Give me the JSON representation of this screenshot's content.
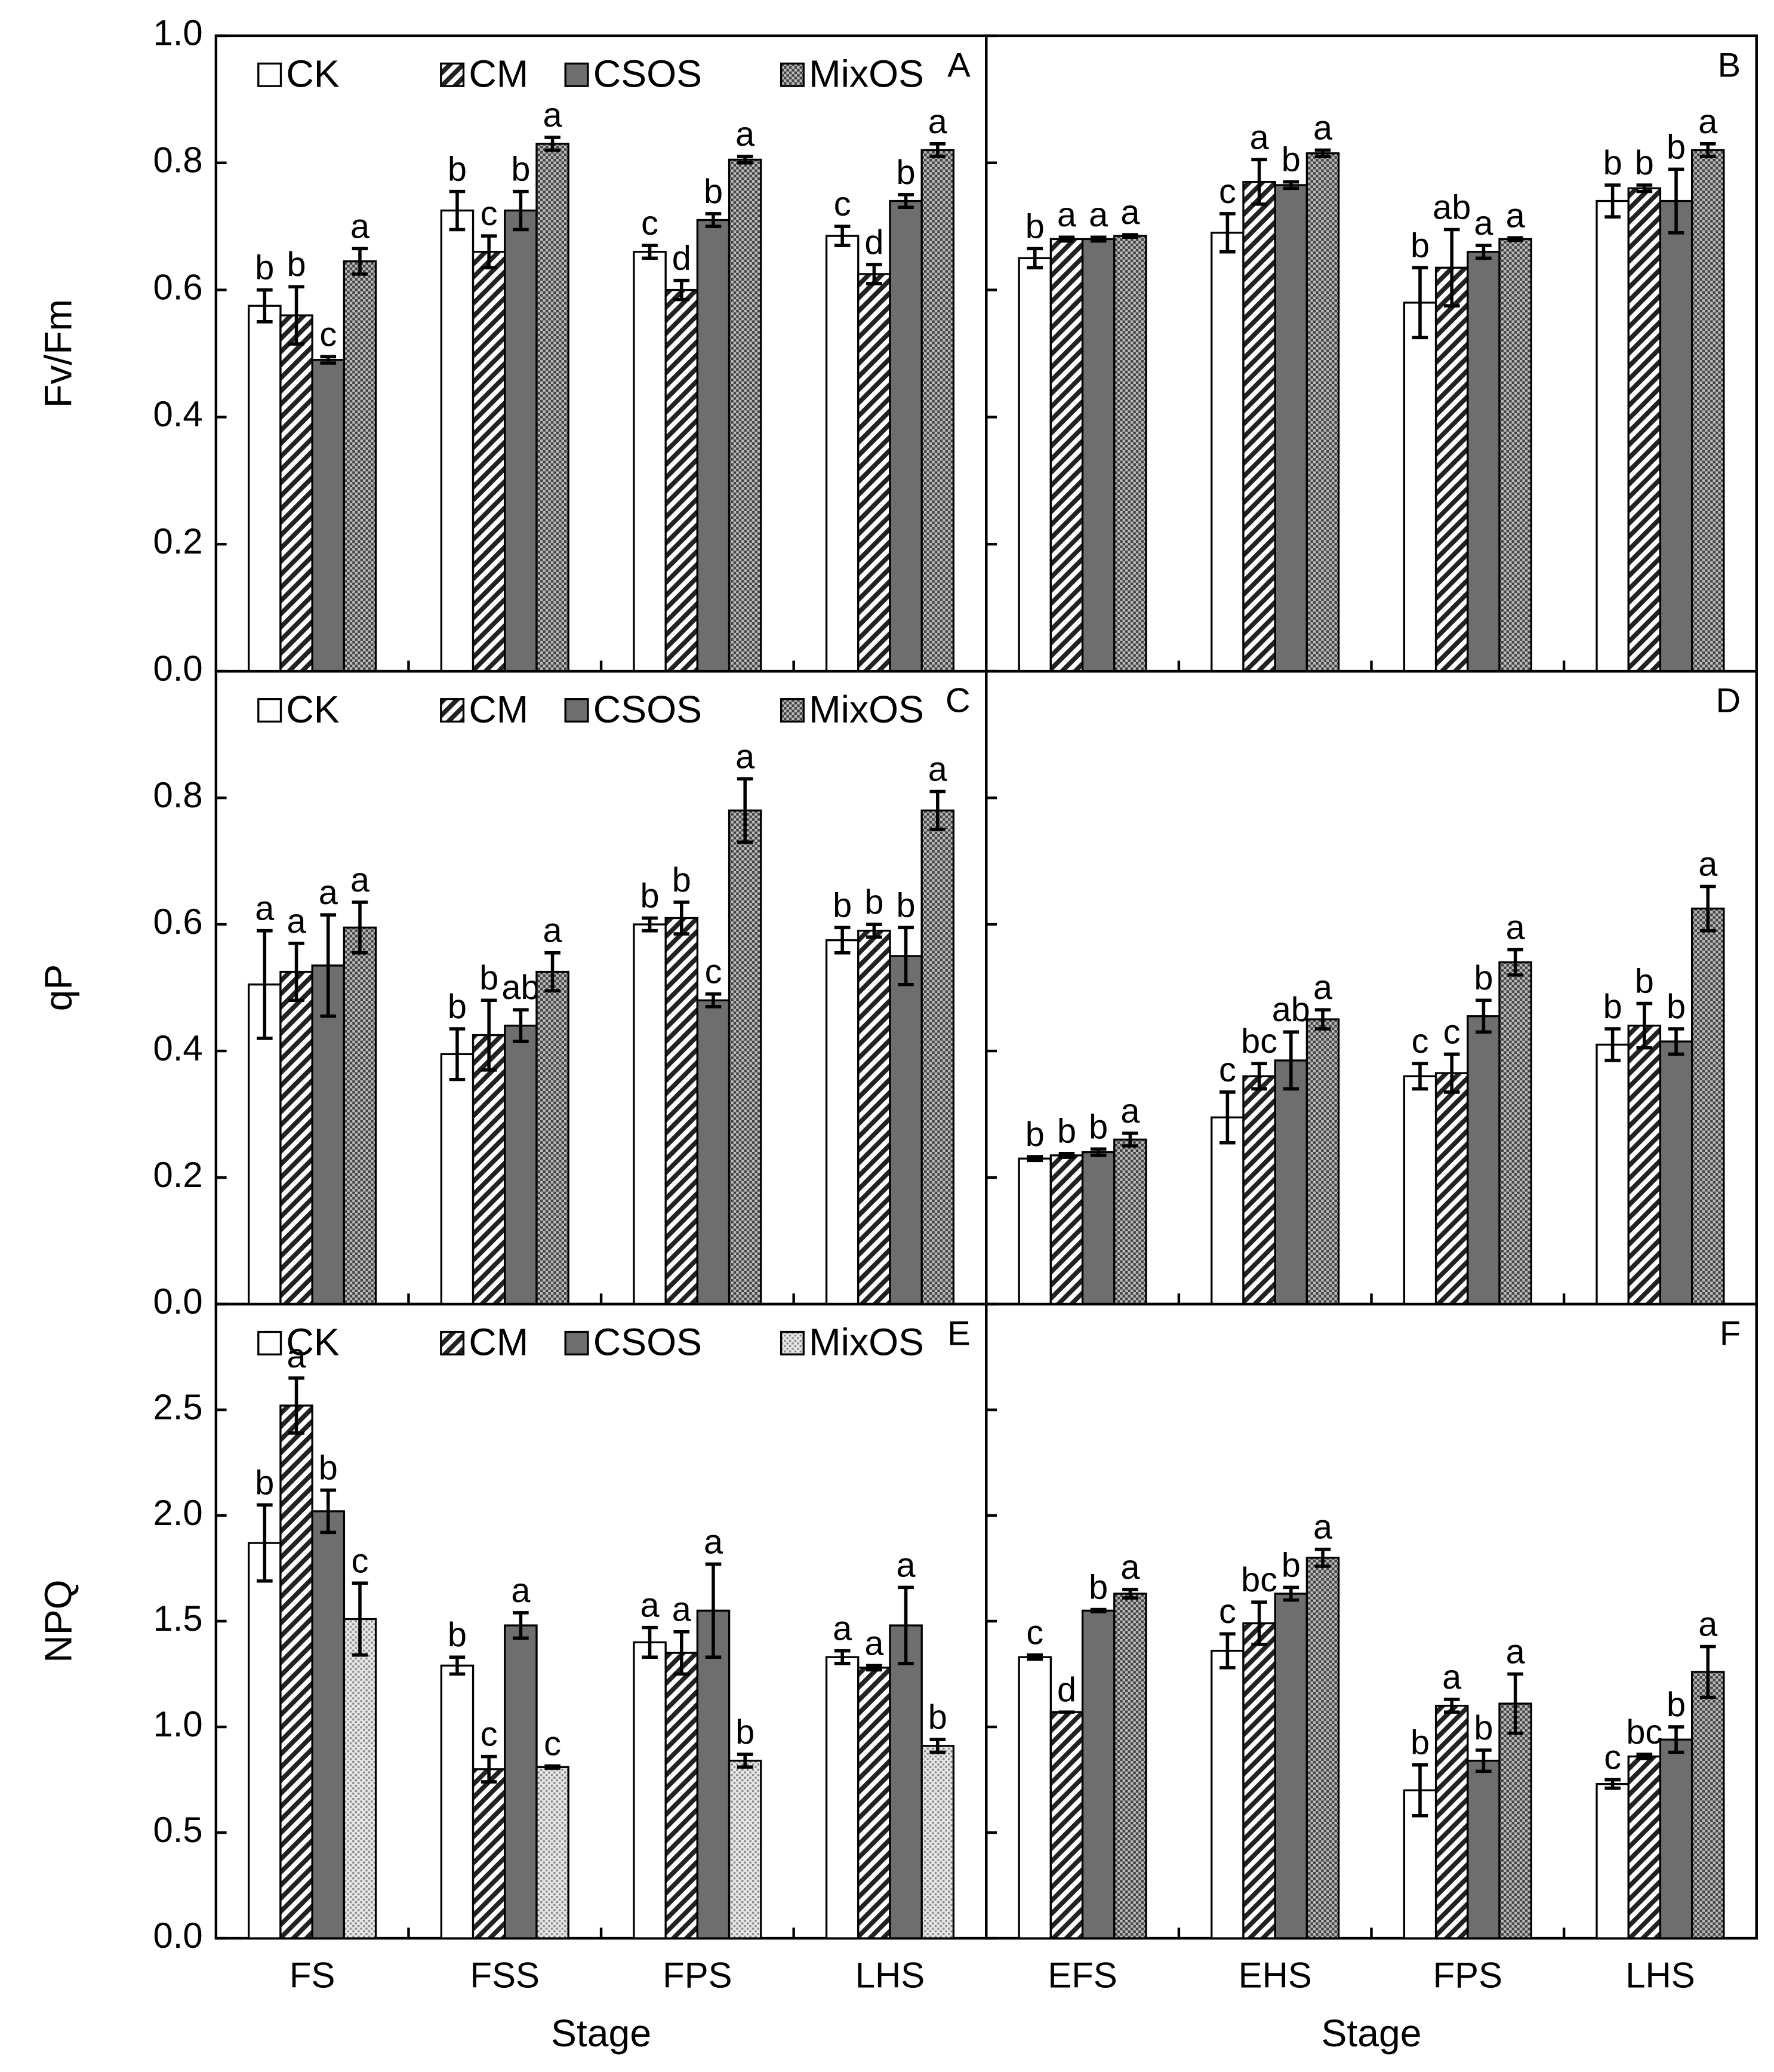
{
  "chart_data": [
    {
      "type": "bar",
      "panel_label": "A",
      "y_label": "Fv/Fm",
      "legend": true,
      "tick_labels": true,
      "ylim": [
        0,
        1.0
      ],
      "yticks": [
        {
          "value": 0,
          "label": "0.0"
        },
        {
          "value": 0.2,
          "label": "0.2"
        },
        {
          "value": 0.4,
          "label": "0.4"
        },
        {
          "value": 0.6,
          "label": "0.6"
        },
        {
          "value": 0.8,
          "label": "0.8"
        },
        {
          "value": 1.0,
          "label": "1.0"
        }
      ],
      "series": [
        {
          "name": "CK",
          "pattern": "white",
          "values": [
            0.575,
            0.725,
            0.66,
            0.685
          ],
          "errors": [
            0.025,
            0.03,
            0.01,
            0.015
          ],
          "letters": [
            "b",
            "b",
            "c",
            "c"
          ]
        },
        {
          "name": "CM",
          "pattern": "hatch",
          "values": [
            0.56,
            0.66,
            0.6,
            0.625
          ],
          "errors": [
            0.045,
            0.025,
            0.015,
            0.015
          ],
          "letters": [
            "b",
            "c",
            "d",
            "d"
          ]
        },
        {
          "name": "CSOS",
          "pattern": "gray",
          "values": [
            0.49,
            0.725,
            0.71,
            0.74
          ],
          "errors": [
            0.005,
            0.03,
            0.01,
            0.01
          ],
          "letters": [
            "c",
            "b",
            "b",
            "b"
          ]
        },
        {
          "name": "MixOS",
          "pattern": "checker",
          "values": [
            0.645,
            0.83,
            0.805,
            0.82
          ],
          "errors": [
            0.02,
            0.01,
            0.005,
            0.01
          ],
          "letters": [
            "a",
            "a",
            "a",
            "a"
          ]
        }
      ]
    },
    {
      "type": "bar",
      "panel_label": "B",
      "tick_labels": false,
      "ylim": [
        0,
        1.0
      ],
      "yticks": [
        0,
        0.2,
        0.4,
        0.6,
        0.8,
        1.0
      ],
      "series": [
        {
          "pattern": "white",
          "values": [
            0.65,
            0.69,
            0.58,
            0.74
          ],
          "errors": [
            0.015,
            0.03,
            0.055,
            0.025
          ],
          "letters": [
            "b",
            "c",
            "b",
            "b"
          ]
        },
        {
          "pattern": "hatch",
          "values": [
            0.68,
            0.77,
            0.635,
            0.76
          ],
          "errors": [
            0.003,
            0.035,
            0.06,
            0.005
          ],
          "letters": [
            "a",
            "a",
            "ab",
            "b"
          ]
        },
        {
          "pattern": "gray",
          "values": [
            0.68,
            0.765,
            0.66,
            0.74
          ],
          "errors": [
            0.003,
            0.005,
            0.01,
            0.05
          ],
          "letters": [
            "a",
            "b",
            "a",
            "b"
          ]
        },
        {
          "pattern": "checker",
          "values": [
            0.685,
            0.815,
            0.68,
            0.82
          ],
          "errors": [
            0.002,
            0.005,
            0.002,
            0.01
          ],
          "letters": [
            "a",
            "a",
            "a",
            "a"
          ]
        }
      ]
    },
    {
      "type": "bar",
      "panel_label": "C",
      "y_label": "qP",
      "legend": true,
      "tick_labels": true,
      "ylim": [
        0,
        1.0
      ],
      "yticks": [
        {
          "value": 0,
          "label": "0.0"
        },
        {
          "value": 0.2,
          "label": "0.2"
        },
        {
          "value": 0.4,
          "label": "0.4"
        },
        {
          "value": 0.6,
          "label": "0.6"
        },
        {
          "value": 0.8,
          "label": "0.8"
        }
      ],
      "series": [
        {
          "name": "CK",
          "pattern": "white",
          "values": [
            0.505,
            0.395,
            0.6,
            0.575
          ],
          "errors": [
            0.085,
            0.04,
            0.01,
            0.02
          ],
          "letters": [
            "a",
            "b",
            "b",
            "b"
          ]
        },
        {
          "name": "CM",
          "pattern": "hatch",
          "values": [
            0.525,
            0.425,
            0.61,
            0.59
          ],
          "errors": [
            0.045,
            0.055,
            0.025,
            0.01
          ],
          "letters": [
            "a",
            "b",
            "b",
            "b"
          ]
        },
        {
          "name": "CSOS",
          "pattern": "gray",
          "values": [
            0.535,
            0.44,
            0.48,
            0.55
          ],
          "errors": [
            0.08,
            0.025,
            0.01,
            0.045
          ],
          "letters": [
            "a",
            "ab",
            "c",
            "b"
          ]
        },
        {
          "name": "MixOS",
          "pattern": "checker",
          "values": [
            0.595,
            0.525,
            0.78,
            0.78
          ],
          "errors": [
            0.04,
            0.03,
            0.05,
            0.03
          ],
          "letters": [
            "a",
            "a",
            "a",
            "a"
          ]
        }
      ]
    },
    {
      "type": "bar",
      "panel_label": "D",
      "tick_labels": false,
      "ylim": [
        0,
        1.0
      ],
      "yticks": [
        0,
        0.2,
        0.4,
        0.6,
        0.8
      ],
      "series": [
        {
          "pattern": "white",
          "values": [
            0.23,
            0.295,
            0.36,
            0.41
          ],
          "errors": [
            0.003,
            0.04,
            0.02,
            0.025
          ],
          "letters": [
            "b",
            "c",
            "c",
            "b"
          ]
        },
        {
          "pattern": "hatch",
          "values": [
            0.235,
            0.36,
            0.365,
            0.44
          ],
          "errors": [
            0.003,
            0.02,
            0.03,
            0.035
          ],
          "letters": [
            "b",
            "bc",
            "c",
            "b"
          ]
        },
        {
          "pattern": "gray",
          "values": [
            0.24,
            0.385,
            0.455,
            0.415
          ],
          "errors": [
            0.005,
            0.045,
            0.025,
            0.02
          ],
          "letters": [
            "b",
            "ab",
            "b",
            "b"
          ]
        },
        {
          "pattern": "checker",
          "values": [
            0.26,
            0.45,
            0.54,
            0.625
          ],
          "errors": [
            0.01,
            0.015,
            0.02,
            0.035
          ],
          "letters": [
            "a",
            "a",
            "a",
            "a"
          ]
        }
      ]
    },
    {
      "type": "bar",
      "panel_label": "E",
      "y_label": "NPQ",
      "x_label": "Stage",
      "legend": true,
      "tick_labels": true,
      "categories": [
        "FS",
        "FSS",
        "FPS",
        "LHS"
      ],
      "ylim": [
        0,
        3.0
      ],
      "yticks": [
        {
          "value": 0,
          "label": "0.0"
        },
        {
          "value": 0.5,
          "label": "0.5"
        },
        {
          "value": 1.0,
          "label": "1.0"
        },
        {
          "value": 1.5,
          "label": "1.5"
        },
        {
          "value": 2.0,
          "label": "2.0"
        },
        {
          "value": 2.5,
          "label": "2.5"
        }
      ],
      "series": [
        {
          "name": "CK",
          "pattern": "white",
          "values": [
            1.87,
            1.29,
            1.4,
            1.33
          ],
          "errors": [
            0.18,
            0.04,
            0.07,
            0.03
          ],
          "letters": [
            "b",
            "b",
            "a",
            "a"
          ]
        },
        {
          "name": "CM",
          "pattern": "hatch",
          "values": [
            2.52,
            0.8,
            1.35,
            1.28
          ],
          "errors": [
            0.13,
            0.06,
            0.1,
            0.01
          ],
          "letters": [
            "a",
            "c",
            "a",
            "a"
          ]
        },
        {
          "name": "CSOS",
          "pattern": "gray",
          "values": [
            2.02,
            1.48,
            1.55,
            1.48
          ],
          "errors": [
            0.1,
            0.06,
            0.22,
            0.18
          ],
          "letters": [
            "b",
            "a",
            "a",
            "a"
          ]
        },
        {
          "name": "MixOS",
          "pattern": "dots",
          "values": [
            1.51,
            0.81,
            0.84,
            0.91
          ],
          "errors": [
            0.17,
            0.005,
            0.03,
            0.03
          ],
          "letters": [
            "c",
            "c",
            "b",
            "b"
          ]
        }
      ]
    },
    {
      "type": "bar",
      "panel_label": "F",
      "x_label": "Stage",
      "tick_labels": false,
      "categories": [
        "EFS",
        "EHS",
        "FPS",
        "LHS"
      ],
      "ylim": [
        0,
        3.0
      ],
      "yticks": [
        0,
        0.5,
        1.0,
        1.5,
        2.0,
        2.5
      ],
      "series": [
        {
          "pattern": "white",
          "values": [
            1.33,
            1.36,
            0.7,
            0.73
          ],
          "errors": [
            0.01,
            0.08,
            0.12,
            0.02
          ],
          "letters": [
            "c",
            "c",
            "b",
            "c"
          ]
        },
        {
          "pattern": "hatch",
          "values": [
            1.07,
            1.49,
            1.1,
            0.86
          ],
          "errors": [
            0,
            0.1,
            0.03,
            0.01
          ],
          "letters": [
            "d",
            "bc",
            "a",
            "bc"
          ]
        },
        {
          "pattern": "gray",
          "values": [
            1.55,
            1.63,
            0.84,
            0.94
          ],
          "errors": [
            0.005,
            0.03,
            0.05,
            0.06
          ],
          "letters": [
            "b",
            "b",
            "b",
            "b"
          ]
        },
        {
          "pattern": "checker",
          "values": [
            1.63,
            1.8,
            1.11,
            1.26
          ],
          "errors": [
            0.02,
            0.04,
            0.14,
            0.12
          ],
          "letters": [
            "a",
            "a",
            "a",
            "a"
          ]
        }
      ]
    }
  ]
}
